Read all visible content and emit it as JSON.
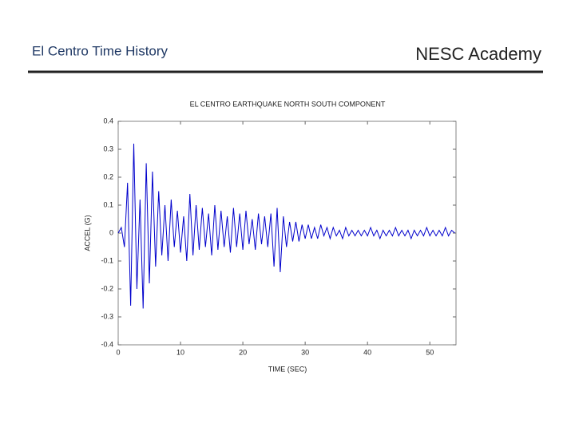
{
  "header": {
    "title": "El Centro Time History",
    "brand": "NESC Academy"
  },
  "chart_data": {
    "type": "line",
    "title": "EL CENTRO EARTHQUAKE NORTH SOUTH COMPONENT",
    "x_label": "TIME (SEC)",
    "y_label": "ACCEL (G)",
    "x": [
      0,
      0.5,
      1,
      1.5,
      2,
      2.5,
      3,
      3.5,
      4,
      4.5,
      5,
      5.5,
      6,
      6.5,
      7,
      7.5,
      8,
      8.5,
      9,
      9.5,
      10,
      10.5,
      11,
      11.5,
      12,
      12.5,
      13,
      13.5,
      14,
      14.5,
      15,
      15.5,
      16,
      16.5,
      17,
      17.5,
      18,
      18.5,
      19,
      19.5,
      20,
      20.5,
      21,
      21.5,
      22,
      22.5,
      23,
      23.5,
      24,
      24.5,
      25,
      25.5,
      26,
      26.5,
      27,
      27.5,
      28,
      28.5,
      29,
      29.5,
      30,
      30.5,
      31,
      31.5,
      32,
      32.5,
      33,
      33.5,
      34,
      34.5,
      35,
      35.5,
      36,
      36.5,
      37,
      37.5,
      38,
      38.5,
      39,
      39.5,
      40,
      40.5,
      41,
      41.5,
      42,
      42.5,
      43,
      43.5,
      44,
      44.5,
      45,
      45.5,
      46,
      46.5,
      47,
      47.5,
      48,
      48.5,
      49,
      49.5,
      50,
      50.5,
      51,
      51.5,
      52,
      52.5,
      53,
      53.5,
      54
    ],
    "series": [
      {
        "name": "ACCEL",
        "color": "#0000cc",
        "values": [
          0,
          0.02,
          -0.05,
          0.18,
          -0.26,
          0.32,
          -0.2,
          0.12,
          -0.27,
          0.25,
          -0.18,
          0.22,
          -0.12,
          0.15,
          -0.08,
          0.1,
          -0.1,
          0.12,
          -0.05,
          0.08,
          -0.07,
          0.06,
          -0.1,
          0.14,
          -0.08,
          0.1,
          -0.06,
          0.09,
          -0.05,
          0.07,
          -0.08,
          0.1,
          -0.06,
          0.08,
          -0.05,
          0.06,
          -0.07,
          0.09,
          -0.05,
          0.07,
          -0.06,
          0.08,
          -0.04,
          0.05,
          -0.06,
          0.07,
          -0.04,
          0.06,
          -0.05,
          0.07,
          -0.12,
          0.09,
          -0.14,
          0.06,
          -0.05,
          0.04,
          -0.03,
          0.04,
          -0.03,
          0.03,
          -0.02,
          0.03,
          -0.02,
          0.02,
          -0.02,
          0.03,
          -0.01,
          0.02,
          -0.02,
          0.02,
          -0.01,
          0.01,
          -0.02,
          0.02,
          -0.01,
          0.01,
          -0.01,
          0.01,
          -0.01,
          0.01,
          -0.01,
          0.02,
          -0.01,
          0.01,
          -0.02,
          0.01,
          -0.01,
          0.01,
          -0.01,
          0.02,
          -0.01,
          0.01,
          -0.01,
          0.01,
          -0.02,
          0.01,
          -0.01,
          0.01,
          -0.01,
          0.02,
          -0.01,
          0.01,
          -0.01,
          0.01,
          -0.01,
          0.02,
          -0.01,
          0.01,
          0
        ]
      }
    ],
    "xlim": [
      0,
      54.2
    ],
    "xticks": [
      0,
      10,
      20,
      30,
      40,
      50
    ],
    "ylim": [
      -0.4,
      0.4
    ],
    "yticks": [
      -0.4,
      -0.3,
      -0.2,
      -0.1,
      0,
      0.1,
      0.2,
      0.3,
      0.4
    ],
    "grid": false
  }
}
